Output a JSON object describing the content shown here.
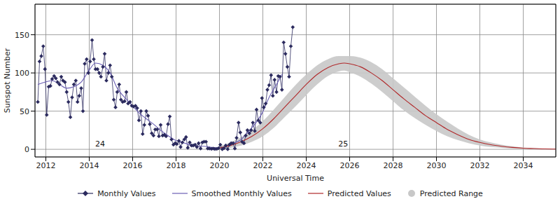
{
  "chart_data": {
    "type": "line",
    "x_label": "Universal Time",
    "y_label": "Sunspot Number",
    "xlim": [
      2011.5,
      2035.5
    ],
    "xticks": [
      2012,
      2014,
      2016,
      2018,
      2020,
      2022,
      2024,
      2026,
      2028,
      2030,
      2032,
      2034
    ],
    "ylim": [
      -10,
      190
    ],
    "yticks": [
      0,
      50,
      100,
      150
    ],
    "grid": true,
    "legend": "bottom",
    "annotations": [
      {
        "text": "24",
        "x": 2014.5,
        "y": 7
      },
      {
        "text": "25",
        "x": 2025.7,
        "y": 7
      }
    ],
    "series": [
      {
        "name": "Monthly Values",
        "color": "#2b2a5e",
        "type": "line",
        "marker": "diamond",
        "x": [
          2011.63,
          2011.71,
          2011.79,
          2011.88,
          2011.96,
          2012.04,
          2012.13,
          2012.21,
          2012.29,
          2012.38,
          2012.46,
          2012.54,
          2012.63,
          2012.71,
          2012.79,
          2012.88,
          2012.96,
          2013.04,
          2013.13,
          2013.21,
          2013.29,
          2013.38,
          2013.46,
          2013.54,
          2013.63,
          2013.71,
          2013.79,
          2013.88,
          2013.96,
          2014.04,
          2014.13,
          2014.21,
          2014.29,
          2014.38,
          2014.46,
          2014.54,
          2014.63,
          2014.71,
          2014.79,
          2014.88,
          2014.96,
          2015.04,
          2015.13,
          2015.21,
          2015.29,
          2015.38,
          2015.46,
          2015.54,
          2015.63,
          2015.71,
          2015.79,
          2015.88,
          2015.96,
          2016.04,
          2016.13,
          2016.21,
          2016.29,
          2016.38,
          2016.46,
          2016.54,
          2016.63,
          2016.71,
          2016.79,
          2016.88,
          2016.96,
          2017.04,
          2017.13,
          2017.21,
          2017.29,
          2017.38,
          2017.46,
          2017.54,
          2017.63,
          2017.71,
          2017.79,
          2017.88,
          2017.96,
          2018.04,
          2018.13,
          2018.21,
          2018.29,
          2018.38,
          2018.46,
          2018.54,
          2018.63,
          2018.71,
          2018.79,
          2018.88,
          2018.96,
          2019.04,
          2019.13,
          2019.21,
          2019.29,
          2019.38,
          2019.46,
          2019.54,
          2019.63,
          2019.71,
          2019.79,
          2019.88,
          2019.96,
          2020.04,
          2020.13,
          2020.21,
          2020.29,
          2020.38,
          2020.46,
          2020.54,
          2020.63,
          2020.71,
          2020.79,
          2020.88,
          2020.96,
          2021.04,
          2021.13,
          2021.21,
          2021.29,
          2021.38,
          2021.46,
          2021.54,
          2021.63,
          2021.71,
          2021.79,
          2021.88,
          2021.96,
          2022.04,
          2022.13,
          2022.21,
          2022.29,
          2022.38,
          2022.46,
          2022.54,
          2022.63,
          2022.71,
          2022.79,
          2022.88,
          2022.96,
          2023.04,
          2023.13,
          2023.21,
          2023.29,
          2023.38
        ],
        "values": [
          62,
          115,
          122,
          135,
          105,
          45,
          82,
          83,
          92,
          96,
          93,
          88,
          85,
          95,
          90,
          88,
          75,
          62,
          42,
          68,
          85,
          90,
          62,
          70,
          80,
          50,
          112,
          118,
          100,
          115,
          143,
          118,
          105,
          105,
          100,
          95,
          108,
          125,
          90,
          100,
          110,
          95,
          65,
          55,
          75,
          85,
          65,
          62,
          63,
          75,
          60,
          62,
          57,
          56,
          57,
          54,
          38,
          50,
          20,
          32,
          50,
          44,
          33,
          21,
          18,
          26,
          26,
          17,
          32,
          18,
          19,
          17,
          33,
          43,
          13,
          6,
          8,
          7,
          11,
          3,
          9,
          13,
          16,
          2,
          9,
          5,
          5,
          6,
          3,
          8,
          1,
          9,
          10,
          10,
          1,
          1,
          0.5,
          1,
          0.4,
          0.5,
          1.5,
          6,
          0.2,
          1.5,
          5,
          0.2,
          6,
          8,
          8,
          1,
          15,
          35,
          22,
          10,
          8,
          18,
          25,
          21,
          25,
          35,
          24,
          52,
          38,
          35,
          67,
          55,
          60,
          78,
          84,
          97,
          70,
          91,
          75,
          96,
          95,
          78,
          140,
          125,
          108,
          95,
          135,
          160
        ]
      },
      {
        "name": "Smoothed Monthly Values",
        "color": "#6b5fb5",
        "type": "line",
        "x": [
          2011.63,
          2011.96,
          2012.29,
          2012.63,
          2012.96,
          2013.29,
          2013.63,
          2013.96,
          2014.29,
          2014.63,
          2014.96,
          2015.29,
          2015.63,
          2015.96,
          2016.29,
          2016.63,
          2016.96,
          2017.29,
          2017.63,
          2017.96,
          2018.29,
          2018.63,
          2018.96,
          2019.29,
          2019.63,
          2019.96,
          2020.29,
          2020.63,
          2020.96,
          2021.29,
          2021.63,
          2021.96,
          2022.29,
          2022.63,
          2022.88
        ],
        "values": [
          85,
          88,
          90,
          85,
          80,
          82,
          88,
          102,
          113,
          110,
          100,
          80,
          68,
          58,
          48,
          40,
          33,
          25,
          18,
          12,
          9,
          6,
          4,
          4,
          2.5,
          1.8,
          4,
          8,
          12,
          22,
          33,
          47,
          68,
          85,
          98
        ]
      },
      {
        "name": "Predicted Values",
        "color": "#b0282a",
        "type": "line",
        "x": [
          2020,
          2020.5,
          2021,
          2021.5,
          2022,
          2022.5,
          2023,
          2023.5,
          2024,
          2024.5,
          2025,
          2025.5,
          2025.75,
          2026,
          2026.5,
          2027,
          2027.5,
          2028,
          2028.5,
          2029,
          2029.5,
          2030,
          2030.5,
          2031,
          2031.5,
          2032,
          2032.5,
          2033,
          2033.5,
          2034,
          2034.5,
          2035,
          2035.5
        ],
        "values": [
          2,
          5,
          10,
          17,
          27,
          40,
          55,
          70,
          85,
          98,
          107,
          112,
          113,
          112,
          108,
          100,
          90,
          78,
          66,
          55,
          44,
          35,
          26,
          19,
          13,
          9,
          6,
          4,
          2.5,
          1.5,
          1,
          0.5,
          0.3
        ]
      },
      {
        "name": "Predicted Range",
        "color": "#c8c8c8",
        "type": "area",
        "x": [
          2020,
          2020.5,
          2021,
          2021.5,
          2022,
          2022.5,
          2023,
          2023.5,
          2024,
          2024.5,
          2025,
          2025.5,
          2025.75,
          2026,
          2026.5,
          2027,
          2027.5,
          2028,
          2028.5,
          2029,
          2029.5,
          2030,
          2030.5,
          2031,
          2031.5,
          2032,
          2032.5,
          2033,
          2033.5,
          2034,
          2034.5,
          2035,
          2035.5
        ],
        "low": [
          0,
          2,
          5,
          10,
          17,
          28,
          42,
          56,
          71,
          85,
          96,
          102,
          103,
          101,
          95,
          86,
          75,
          63,
          51,
          41,
          32,
          24,
          17,
          12,
          8,
          5,
          3,
          2,
          1,
          0.5,
          0.3,
          0.1,
          0
        ],
        "high": [
          4,
          9,
          16,
          25,
          37,
          52,
          68,
          84,
          98,
          110,
          118,
          122,
          122,
          122,
          120,
          114,
          105,
          93,
          81,
          69,
          57,
          46,
          36,
          27,
          19,
          13,
          9,
          6,
          4,
          2.5,
          1.7,
          1,
          0.6
        ]
      }
    ]
  }
}
